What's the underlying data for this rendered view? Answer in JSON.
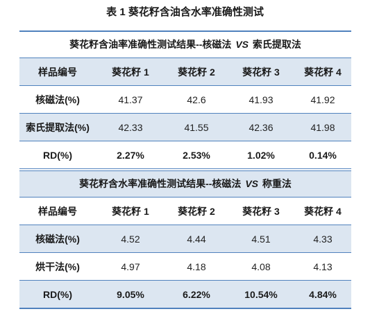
{
  "title": "表 1 葵花籽含油含水率准确性测试",
  "table1": {
    "subtitle_pre": "葵花籽含油率准确性测试结果--核磁法",
    "subtitle_vs": "VS",
    "subtitle_post": "索氏提取法",
    "header": [
      "样品编号",
      "葵花籽 1",
      "葵花籽 2",
      "葵花籽 3",
      "葵花籽 4"
    ],
    "rows": [
      [
        "核磁法(%)",
        "41.37",
        "42.6",
        "41.93",
        "41.92"
      ],
      [
        "索氏提取法(%)",
        "42.33",
        "41.55",
        "42.36",
        "41.98"
      ],
      [
        "RD(%)",
        "2.27%",
        "2.53%",
        "1.02%",
        "0.14%"
      ]
    ]
  },
  "table2": {
    "subtitle_pre": "葵花籽含水率准确性测试结果--核磁法",
    "subtitle_vs": "VS",
    "subtitle_post": "称重法",
    "header": [
      "样品编号",
      "葵花籽 1",
      "葵花籽 2",
      "葵花籽 3",
      "葵花籽 4"
    ],
    "rows": [
      [
        "核磁法(%)",
        "4.52",
        "4.44",
        "4.51",
        "4.33"
      ],
      [
        "烘干法(%)",
        "4.97",
        "4.18",
        "4.08",
        "4.13"
      ],
      [
        "RD(%)",
        "9.05%",
        "6.22%",
        "10.54%",
        "4.84%"
      ]
    ]
  }
}
